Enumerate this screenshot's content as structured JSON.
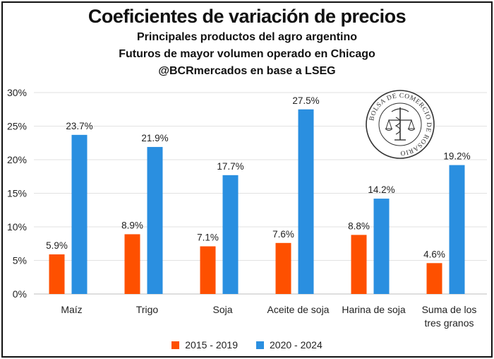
{
  "chart_data": {
    "type": "bar",
    "title": "Coeficientes de variación de precios",
    "subtitle_lines": [
      "Principales productos del agro argentino",
      "Futuros de mayor volumen operado en Chicago",
      "@BCRmercados en base a LSEG"
    ],
    "categories": [
      "Maíz",
      "Trigo",
      "Soja",
      "Aceite de soja",
      "Harina de soja",
      "Suma de los tres granos"
    ],
    "category_lines": [
      [
        "Maíz"
      ],
      [
        "Trigo"
      ],
      [
        "Soja"
      ],
      [
        "Aceite de soja"
      ],
      [
        "Harina de soja"
      ],
      [
        "Suma de los",
        "tres granos"
      ]
    ],
    "series": [
      {
        "name": "2015 - 2019",
        "color": "#fe5000",
        "values": [
          5.9,
          8.9,
          7.1,
          7.6,
          8.8,
          4.6
        ],
        "labels": [
          "5.9%",
          "8.9%",
          "7.1%",
          "7.6%",
          "8.8%",
          "4.6%"
        ]
      },
      {
        "name": "2020 - 2024",
        "color": "#2a8fe0",
        "values": [
          23.7,
          21.9,
          17.7,
          27.5,
          14.2,
          19.2
        ],
        "labels": [
          "23.7%",
          "21.9%",
          "17.7%",
          "27.5%",
          "14.2%",
          "19.2%"
        ]
      }
    ],
    "ylim": [
      0,
      30
    ],
    "yticks": [
      0,
      5,
      10,
      15,
      20,
      25,
      30
    ],
    "ytick_labels": [
      "0%",
      "5%",
      "10%",
      "15%",
      "20%",
      "25%",
      "30%"
    ],
    "xlabel": "",
    "ylabel": "",
    "grid": true,
    "legend_position": "bottom",
    "logo": {
      "name": "Bolsa de Comercio de Rosario seal",
      "text": "BOLSA DE COMERCIO DE ROSARIO"
    }
  }
}
